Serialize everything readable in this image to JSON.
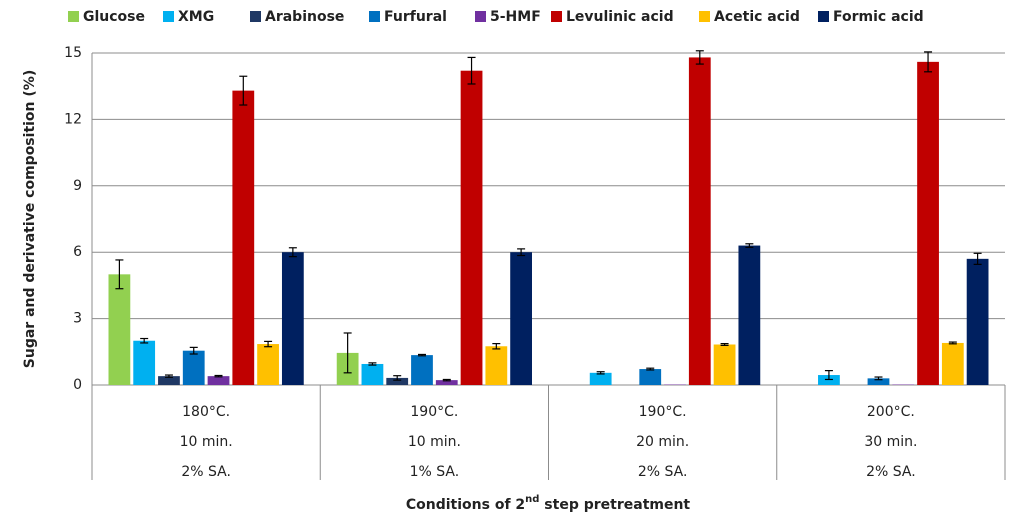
{
  "chart_data": {
    "type": "bar",
    "ylabel": "Sugar and derivative composition (%)",
    "xlabel": {
      "text": "Conditions of 2",
      "superscript": "nd",
      "rest": " step pretreatment"
    },
    "categories": [
      [
        "180°C.",
        "10 min.",
        "2% SA."
      ],
      [
        "190°C.",
        "10 min.",
        "1% SA."
      ],
      [
        "190°C.",
        "20 min.",
        "2% SA."
      ],
      [
        "200°C.",
        "30 min.",
        "2% SA."
      ]
    ],
    "ylim": [
      0,
      15
    ],
    "yticks": [
      0,
      3,
      6,
      9,
      12,
      15
    ],
    "grid": true,
    "legend": "top",
    "series": [
      {
        "name": "Glucose",
        "color": "#92d050",
        "values": [
          5.0,
          1.45,
          0,
          0
        ],
        "errors": [
          0.65,
          0.9,
          null,
          null
        ]
      },
      {
        "name": "XMG",
        "color": "#00b0f0",
        "values": [
          2.0,
          0.95,
          0.55,
          0.45
        ],
        "errors": [
          0.1,
          0.05,
          0.05,
          0.2
        ]
      },
      {
        "name": "Arabinose",
        "color": "#1f3864",
        "values": [
          0.4,
          0.32,
          0,
          0
        ],
        "errors": [
          0.05,
          0.1,
          null,
          null
        ]
      },
      {
        "name": "Furfural",
        "color": "#0070c0",
        "values": [
          1.55,
          1.35,
          0.72,
          0.3
        ],
        "errors": [
          0.15,
          0.03,
          0.04,
          0.06
        ]
      },
      {
        "name": "5-HMF",
        "color": "#7030a0",
        "values": [
          0.4,
          0.22,
          0.02,
          0.02
        ],
        "errors": [
          0.03,
          0.03,
          null,
          null
        ]
      },
      {
        "name": "Levulinic acid",
        "color": "#c00000",
        "values": [
          13.3,
          14.2,
          14.8,
          14.6
        ],
        "errors": [
          0.65,
          0.6,
          0.3,
          0.45
        ]
      },
      {
        "name": "Acetic acid",
        "color": "#ffc000",
        "values": [
          1.85,
          1.75,
          1.83,
          1.9
        ],
        "errors": [
          0.12,
          0.12,
          0.04,
          0.04
        ]
      },
      {
        "name": "Formic acid",
        "color": "#002060",
        "values": [
          6.0,
          6.0,
          6.3,
          5.7
        ],
        "errors": [
          0.2,
          0.15,
          0.08,
          0.25
        ]
      }
    ]
  }
}
